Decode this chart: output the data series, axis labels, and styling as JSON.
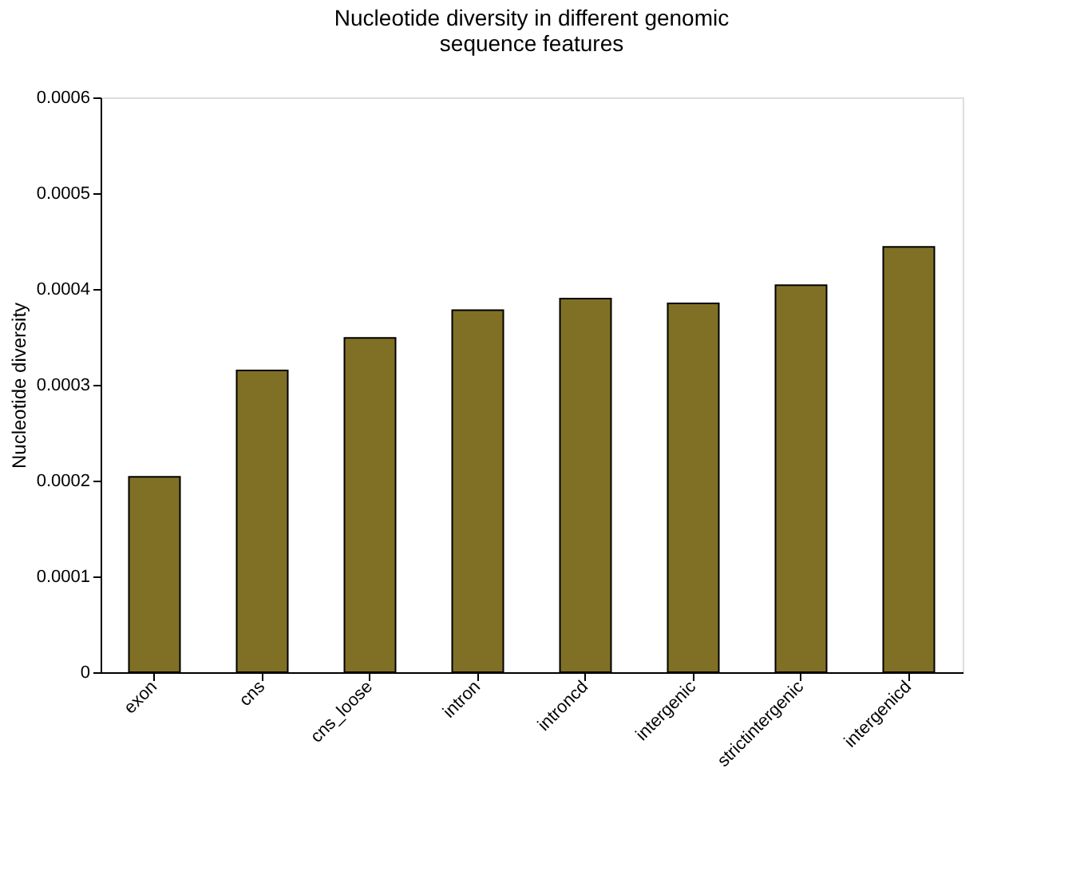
{
  "chart_data": {
    "type": "bar",
    "title": [
      "Nucleotide diversity in different genomic",
      "sequence features"
    ],
    "ylabel": "Nucleotide diversity",
    "categories": [
      "exon",
      "cns",
      "cns_loose",
      "intron",
      "introncd",
      "intergenic",
      "strictintergenic",
      "intergenicd"
    ],
    "values": [
      0.000204,
      0.000315,
      0.000349,
      0.000378,
      0.00039,
      0.000385,
      0.000404,
      0.000444
    ],
    "color": "#807025",
    "ylim": [
      0,
      0.0006
    ],
    "yticks": [
      0,
      0.0001,
      0.0002,
      0.0003,
      0.0004,
      0.0005,
      0.0006
    ],
    "grid": false
  }
}
